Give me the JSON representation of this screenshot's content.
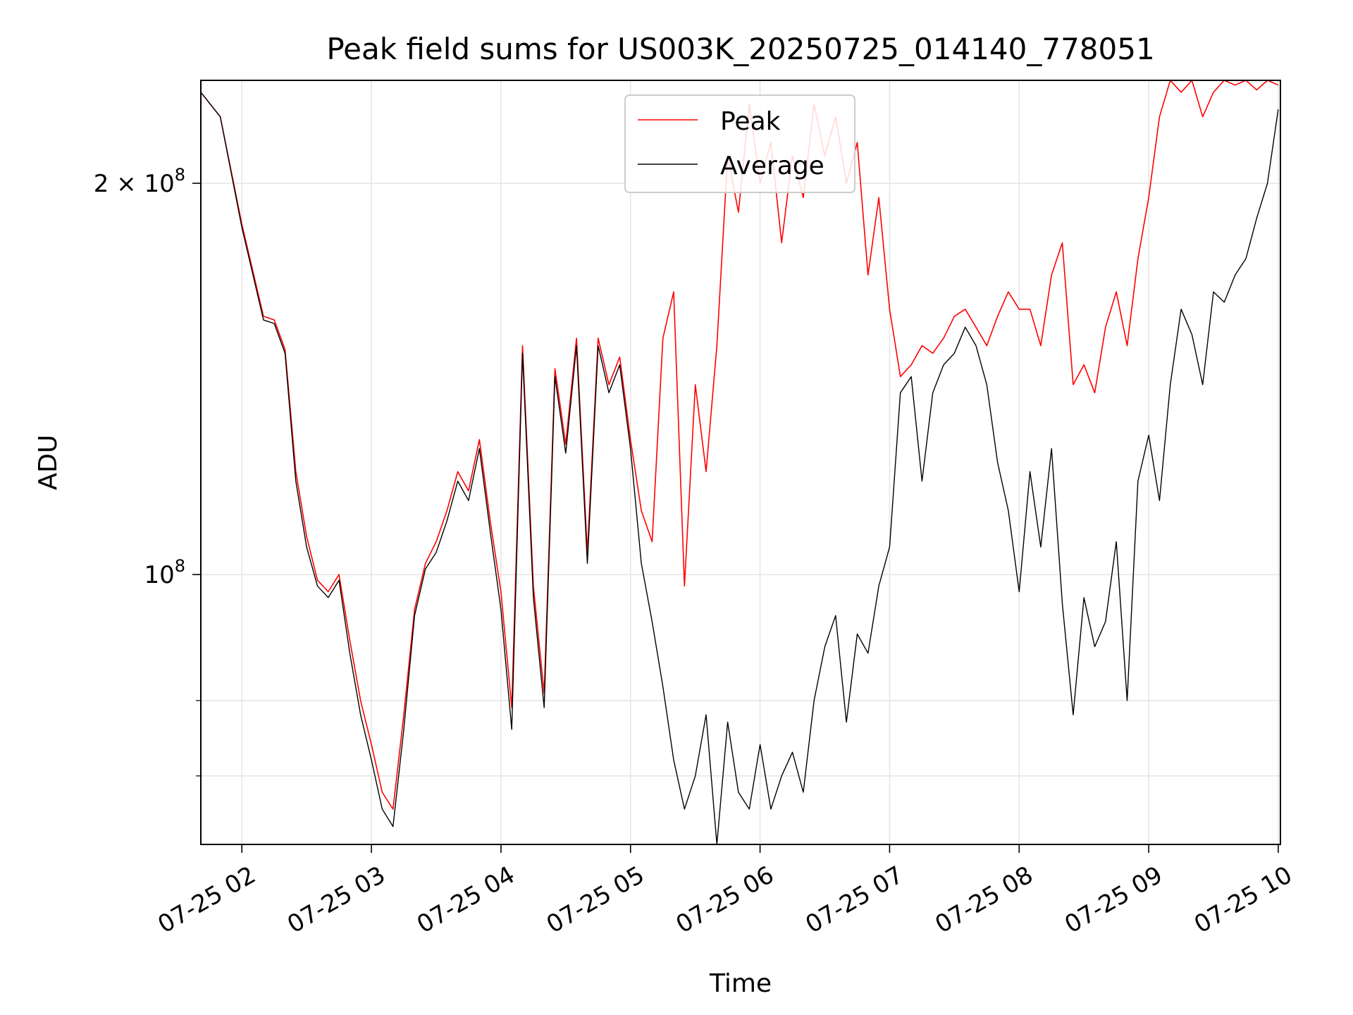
{
  "chart_data": {
    "type": "line",
    "title": "Peak field sums for US003K_20250725_014140_778051",
    "xlabel": "Time",
    "ylabel": "ADU",
    "y_scale": "log",
    "ylim": [
      62000000,
      240000000
    ],
    "xlim": [
      "07-25 01:41",
      "07-25 10:01"
    ],
    "x_ticks": [
      "07-25 02",
      "07-25 03",
      "07-25 04",
      "07-25 05",
      "07-25 06",
      "07-25 07",
      "07-25 08",
      "07-25 09",
      "07-25 10"
    ],
    "y_ticks": [
      {
        "value": 100000000,
        "base": "10",
        "exp": "8",
        "coef": ""
      },
      {
        "value": 200000000,
        "base": "10",
        "exp": "8",
        "coef": "2 × "
      }
    ],
    "y_minor_ticks": [
      70000000,
      80000000
    ],
    "grid": true,
    "legend": {
      "position": "top-center",
      "entries": [
        "Peak",
        "Average"
      ]
    },
    "series": [
      {
        "name": "Average",
        "color": "#000000",
        "x": [
          "07-25 01:41",
          "07-25 01:50",
          "07-25 02:00",
          "07-25 02:10",
          "07-25 02:15",
          "07-25 02:20",
          "07-25 02:25",
          "07-25 02:30",
          "07-25 02:35",
          "07-25 02:40",
          "07-25 02:45",
          "07-25 02:50",
          "07-25 02:55",
          "07-25 03:00",
          "07-25 03:05",
          "07-25 03:10",
          "07-25 03:15",
          "07-25 03:20",
          "07-25 03:25",
          "07-25 03:30",
          "07-25 03:35",
          "07-25 03:40",
          "07-25 03:45",
          "07-25 03:50",
          "07-25 03:55",
          "07-25 04:00",
          "07-25 04:05",
          "07-25 04:10",
          "07-25 04:15",
          "07-25 04:20",
          "07-25 04:25",
          "07-25 04:30",
          "07-25 04:35",
          "07-25 04:40",
          "07-25 04:45",
          "07-25 04:50",
          "07-25 04:55",
          "07-25 05:00",
          "07-25 05:05",
          "07-25 05:10",
          "07-25 05:15",
          "07-25 05:20",
          "07-25 05:25",
          "07-25 05:30",
          "07-25 05:35",
          "07-25 05:40",
          "07-25 05:45",
          "07-25 05:50",
          "07-25 05:55",
          "07-25 06:00",
          "07-25 06:05",
          "07-25 06:10",
          "07-25 06:15",
          "07-25 06:20",
          "07-25 06:25",
          "07-25 06:30",
          "07-25 06:35",
          "07-25 06:40",
          "07-25 06:45",
          "07-25 06:50",
          "07-25 06:55",
          "07-25 07:00",
          "07-25 07:05",
          "07-25 07:10",
          "07-25 07:15",
          "07-25 07:20",
          "07-25 07:25",
          "07-25 07:30",
          "07-25 07:35",
          "07-25 07:40",
          "07-25 07:45",
          "07-25 07:50",
          "07-25 07:55",
          "07-25 08:00",
          "07-25 08:05",
          "07-25 08:10",
          "07-25 08:15",
          "07-25 08:20",
          "07-25 08:25",
          "07-25 08:30",
          "07-25 08:35",
          "07-25 08:40",
          "07-25 08:45",
          "07-25 08:50",
          "07-25 08:55",
          "07-25 09:00",
          "07-25 09:05",
          "07-25 09:10",
          "07-25 09:15",
          "07-25 09:20",
          "07-25 09:25",
          "07-25 09:30",
          "07-25 09:35",
          "07-25 09:40",
          "07-25 09:45",
          "07-25 09:50",
          "07-25 09:55",
          "07-25 10:00"
        ],
        "y": [
          235000000,
          225000000,
          185000000,
          157000000,
          156000000,
          148000000,
          118000000,
          105000000,
          98000000,
          96000000,
          99000000,
          87000000,
          78000000,
          72000000,
          66000000,
          64000000,
          76000000,
          93000000,
          101000000,
          104000000,
          110000000,
          118000000,
          114000000,
          125000000,
          108000000,
          94000000,
          76000000,
          148000000,
          96000000,
          79000000,
          142000000,
          124000000,
          150000000,
          102000000,
          150000000,
          138000000,
          145000000,
          125000000,
          102000000,
          92000000,
          82000000,
          72000000,
          66000000,
          70000000,
          78000000,
          62000000,
          77000000,
          68000000,
          66000000,
          74000000,
          66000000,
          70000000,
          73000000,
          68000000,
          80000000,
          88000000,
          93000000,
          77000000,
          90000000,
          87000000,
          98000000,
          105000000,
          138000000,
          142000000,
          118000000,
          138000000,
          145000000,
          148000000,
          155000000,
          150000000,
          140000000,
          122000000,
          112000000,
          97000000,
          120000000,
          105000000,
          125000000,
          95000000,
          78000000,
          96000000,
          88000000,
          92000000,
          106000000,
          80000000,
          118000000,
          128000000,
          114000000,
          140000000,
          160000000,
          153000000,
          140000000,
          165000000,
          162000000,
          170000000,
          175000000,
          188000000,
          200000000,
          228000000
        ]
      },
      {
        "name": "Peak",
        "color": "#ff0000",
        "note_spikes": "dense fluctuating peak series",
        "x": [
          "07-25 01:41",
          "07-25 01:50",
          "07-25 02:00",
          "07-25 02:10",
          "07-25 02:15",
          "07-25 02:20",
          "07-25 02:25",
          "07-25 02:30",
          "07-25 02:35",
          "07-25 02:40",
          "07-25 02:45",
          "07-25 02:50",
          "07-25 02:55",
          "07-25 03:00",
          "07-25 03:05",
          "07-25 03:10",
          "07-25 03:15",
          "07-25 03:20",
          "07-25 03:25",
          "07-25 03:30",
          "07-25 03:35",
          "07-25 03:40",
          "07-25 03:45",
          "07-25 03:50",
          "07-25 03:55",
          "07-25 04:00",
          "07-25 04:05",
          "07-25 04:10",
          "07-25 04:15",
          "07-25 04:20",
          "07-25 04:25",
          "07-25 04:30",
          "07-25 04:35",
          "07-25 04:40",
          "07-25 04:45",
          "07-25 04:50",
          "07-25 04:55",
          "07-25 05:00",
          "07-25 05:05",
          "07-25 05:10",
          "07-25 05:15",
          "07-25 05:20",
          "07-25 05:25",
          "07-25 05:30",
          "07-25 05:35",
          "07-25 05:40",
          "07-25 05:45",
          "07-25 05:50",
          "07-25 05:55",
          "07-25 06:00",
          "07-25 06:05",
          "07-25 06:10",
          "07-25 06:15",
          "07-25 06:20",
          "07-25 06:25",
          "07-25 06:30",
          "07-25 06:35",
          "07-25 06:40",
          "07-25 06:45",
          "07-25 06:50",
          "07-25 06:55",
          "07-25 07:00",
          "07-25 07:05",
          "07-25 07:10",
          "07-25 07:15",
          "07-25 07:20",
          "07-25 07:25",
          "07-25 07:30",
          "07-25 07:35",
          "07-25 07:40",
          "07-25 07:45",
          "07-25 07:50",
          "07-25 07:55",
          "07-25 08:00",
          "07-25 08:05",
          "07-25 08:10",
          "07-25 08:15",
          "07-25 08:20",
          "07-25 08:25",
          "07-25 08:30",
          "07-25 08:35",
          "07-25 08:40",
          "07-25 08:45",
          "07-25 08:50",
          "07-25 08:55",
          "07-25 09:00",
          "07-25 09:05",
          "07-25 09:10",
          "07-25 09:15",
          "07-25 09:20",
          "07-25 09:25",
          "07-25 09:30",
          "07-25 09:35",
          "07-25 09:40",
          "07-25 09:45",
          "07-25 09:50",
          "07-25 09:55",
          "07-25 10:00"
        ],
        "y": [
          235000000,
          225000000,
          186000000,
          158000000,
          157000000,
          149000000,
          120000000,
          107000000,
          99000000,
          97000000,
          100000000,
          89000000,
          80000000,
          74000000,
          68000000,
          66000000,
          78000000,
          94000000,
          102000000,
          106000000,
          112000000,
          120000000,
          116000000,
          127000000,
          110000000,
          97000000,
          79000000,
          150000000,
          98000000,
          81000000,
          144000000,
          126000000,
          152000000,
          104000000,
          152000000,
          140000000,
          147000000,
          127000000,
          112000000,
          106000000,
          152000000,
          165000000,
          98000000,
          140000000,
          120000000,
          150000000,
          210000000,
          190000000,
          230000000,
          200000000,
          215000000,
          180000000,
          210000000,
          195000000,
          230000000,
          210000000,
          225000000,
          200000000,
          215000000,
          170000000,
          195000000,
          160000000,
          142000000,
          145000000,
          150000000,
          148000000,
          152000000,
          158000000,
          160000000,
          155000000,
          150000000,
          158000000,
          165000000,
          160000000,
          160000000,
          150000000,
          170000000,
          180000000,
          140000000,
          145000000,
          138000000,
          155000000,
          165000000,
          150000000,
          175000000,
          195000000,
          225000000,
          240000000,
          235000000,
          240000000,
          225000000,
          235000000,
          240000000,
          238000000,
          240000000,
          236000000,
          240000000,
          238000000
        ]
      }
    ]
  }
}
